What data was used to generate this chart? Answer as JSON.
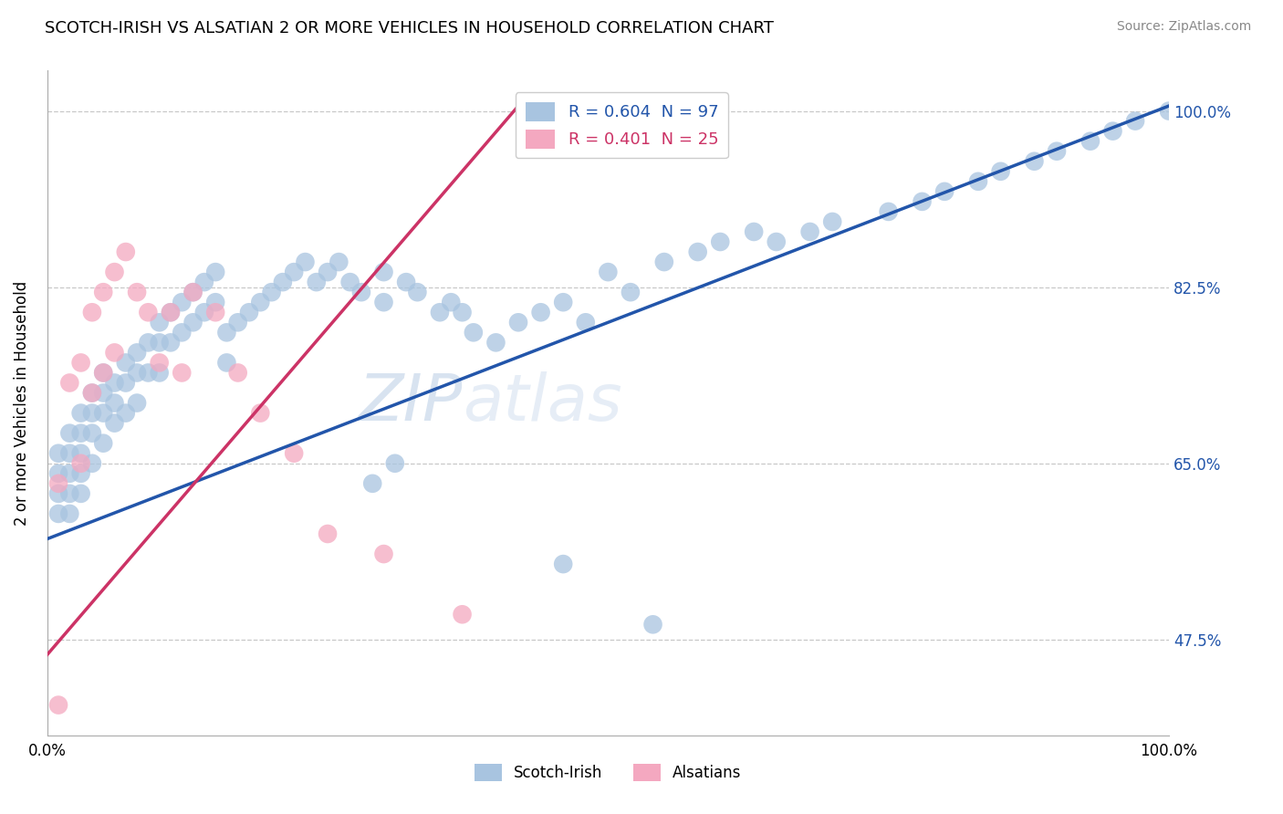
{
  "title": "SCOTCH-IRISH VS ALSATIAN 2 OR MORE VEHICLES IN HOUSEHOLD CORRELATION CHART",
  "source": "Source: ZipAtlas.com",
  "ylabel": "2 or more Vehicles in Household",
  "ytick_values": [
    0.475,
    0.65,
    0.825,
    1.0
  ],
  "ytick_labels": [
    "47.5%",
    "65.0%",
    "82.5%",
    "100.0%"
  ],
  "xmin": 0.0,
  "xmax": 1.0,
  "ymin": 0.38,
  "ymax": 1.04,
  "scotch_irish_R": 0.604,
  "scotch_irish_N": 97,
  "alsatian_R": 0.401,
  "alsatian_N": 25,
  "scotch_irish_color": "#a8c4e0",
  "alsatian_color": "#f4a8c0",
  "scotch_irish_line_color": "#2255aa",
  "alsatian_line_color": "#cc3366",
  "watermark_zip": "ZIP",
  "watermark_atlas": "atlas",
  "si_line_x0": 0.0,
  "si_line_y0": 0.575,
  "si_line_x1": 1.0,
  "si_line_y1": 1.005,
  "al_line_x0": 0.0,
  "al_line_y0": 0.46,
  "al_line_x1": 0.42,
  "al_line_y1": 1.005,
  "scotch_irish_x": [
    0.01,
    0.01,
    0.01,
    0.01,
    0.02,
    0.02,
    0.02,
    0.02,
    0.02,
    0.03,
    0.03,
    0.03,
    0.03,
    0.03,
    0.04,
    0.04,
    0.04,
    0.04,
    0.05,
    0.05,
    0.05,
    0.05,
    0.06,
    0.06,
    0.06,
    0.07,
    0.07,
    0.07,
    0.08,
    0.08,
    0.08,
    0.09,
    0.09,
    0.1,
    0.1,
    0.1,
    0.11,
    0.11,
    0.12,
    0.12,
    0.13,
    0.13,
    0.14,
    0.14,
    0.15,
    0.15,
    0.16,
    0.16,
    0.17,
    0.18,
    0.19,
    0.2,
    0.21,
    0.22,
    0.23,
    0.24,
    0.25,
    0.26,
    0.27,
    0.28,
    0.3,
    0.3,
    0.32,
    0.33,
    0.35,
    0.36,
    0.37,
    0.38,
    0.4,
    0.42,
    0.44,
    0.46,
    0.48,
    0.5,
    0.52,
    0.55,
    0.58,
    0.6,
    0.63,
    0.65,
    0.68,
    0.7,
    0.75,
    0.78,
    0.8,
    0.83,
    0.85,
    0.88,
    0.9,
    0.93,
    0.95,
    0.97,
    1.0,
    0.46,
    0.54,
    0.29,
    0.31
  ],
  "scotch_irish_y": [
    0.66,
    0.64,
    0.62,
    0.6,
    0.68,
    0.66,
    0.64,
    0.62,
    0.6,
    0.7,
    0.68,
    0.66,
    0.64,
    0.62,
    0.72,
    0.7,
    0.68,
    0.65,
    0.74,
    0.72,
    0.7,
    0.67,
    0.73,
    0.71,
    0.69,
    0.75,
    0.73,
    0.7,
    0.76,
    0.74,
    0.71,
    0.77,
    0.74,
    0.79,
    0.77,
    0.74,
    0.8,
    0.77,
    0.81,
    0.78,
    0.82,
    0.79,
    0.83,
    0.8,
    0.84,
    0.81,
    0.78,
    0.75,
    0.79,
    0.8,
    0.81,
    0.82,
    0.83,
    0.84,
    0.85,
    0.83,
    0.84,
    0.85,
    0.83,
    0.82,
    0.84,
    0.81,
    0.83,
    0.82,
    0.8,
    0.81,
    0.8,
    0.78,
    0.77,
    0.79,
    0.8,
    0.81,
    0.79,
    0.84,
    0.82,
    0.85,
    0.86,
    0.87,
    0.88,
    0.87,
    0.88,
    0.89,
    0.9,
    0.91,
    0.92,
    0.93,
    0.94,
    0.95,
    0.96,
    0.97,
    0.98,
    0.99,
    1.0,
    0.55,
    0.49,
    0.63,
    0.65
  ],
  "alsatian_x": [
    0.01,
    0.01,
    0.02,
    0.03,
    0.03,
    0.04,
    0.04,
    0.05,
    0.05,
    0.06,
    0.06,
    0.07,
    0.08,
    0.09,
    0.1,
    0.11,
    0.12,
    0.13,
    0.15,
    0.17,
    0.19,
    0.22,
    0.25,
    0.3,
    0.37
  ],
  "alsatian_y": [
    0.63,
    0.41,
    0.73,
    0.75,
    0.65,
    0.8,
    0.72,
    0.82,
    0.74,
    0.84,
    0.76,
    0.86,
    0.82,
    0.8,
    0.75,
    0.8,
    0.74,
    0.82,
    0.8,
    0.74,
    0.7,
    0.66,
    0.58,
    0.56,
    0.5
  ]
}
